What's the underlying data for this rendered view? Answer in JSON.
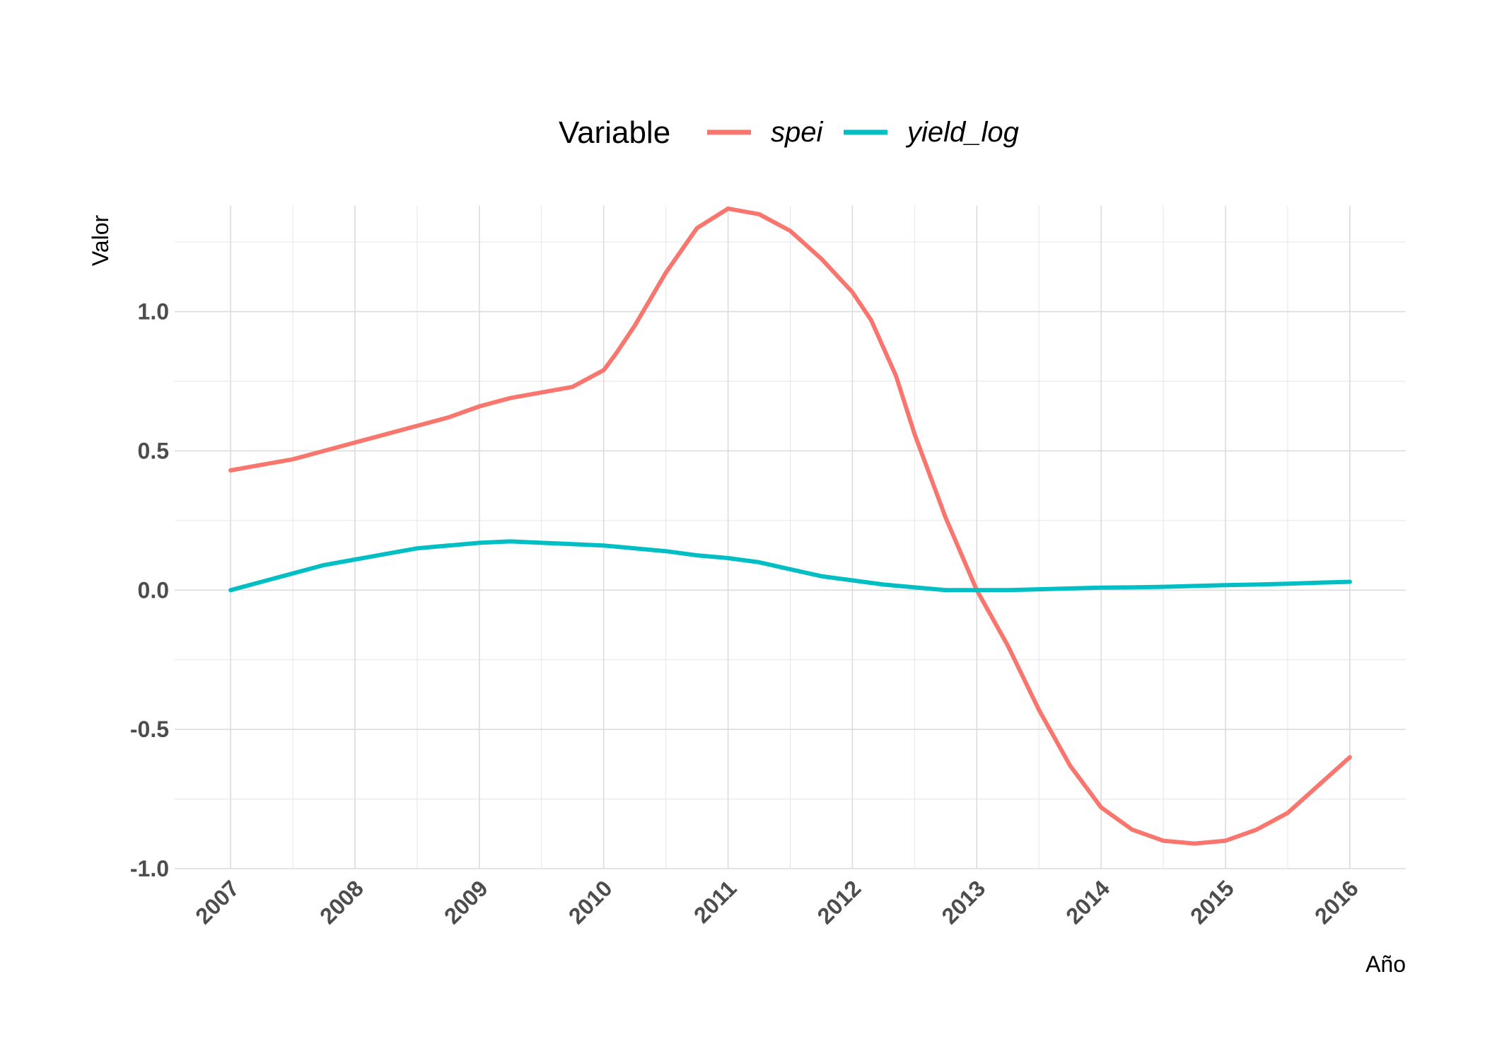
{
  "chart_data": {
    "type": "line",
    "title": "",
    "xlabel": "Año",
    "ylabel": "Valor",
    "xlim": [
      2006.55,
      2016.45
    ],
    "ylim": [
      -1.0,
      1.38
    ],
    "grid": true,
    "legend": {
      "title": "Variable",
      "position": "top",
      "entries": [
        {
          "name": "spei",
          "color": "#F8766D"
        },
        {
          "name": "yield_log",
          "color": "#00BFC4"
        }
      ]
    },
    "x_ticks": [
      2007,
      2008,
      2009,
      2010,
      2011,
      2012,
      2013,
      2014,
      2015,
      2016
    ],
    "x_tick_labels": [
      "2007",
      "2008",
      "2009",
      "2010",
      "2011",
      "2012",
      "2013",
      "2014",
      "2015",
      "2016"
    ],
    "y_ticks": [
      -1.0,
      -0.5,
      0.0,
      0.5,
      1.0
    ],
    "y_tick_labels": [
      "-1.0",
      "-0.5",
      "0.0",
      "0.5",
      "1.0"
    ],
    "series": [
      {
        "name": "spei",
        "color": "#F8766D",
        "x": [
          2007.0,
          2007.25,
          2007.5,
          2007.75,
          2008.0,
          2008.25,
          2008.5,
          2008.75,
          2009.0,
          2009.25,
          2009.5,
          2009.75,
          2010.0,
          2010.1,
          2010.25,
          2010.5,
          2010.75,
          2011.0,
          2011.25,
          2011.5,
          2011.75,
          2012.0,
          2012.15,
          2012.35,
          2012.5,
          2012.75,
          2013.0,
          2013.25,
          2013.5,
          2013.75,
          2014.0,
          2014.25,
          2014.5,
          2014.75,
          2015.0,
          2015.25,
          2015.5,
          2015.75,
          2016.0
        ],
        "y": [
          0.43,
          0.45,
          0.47,
          0.5,
          0.53,
          0.56,
          0.59,
          0.62,
          0.66,
          0.69,
          0.71,
          0.73,
          0.79,
          0.85,
          0.95,
          1.14,
          1.3,
          1.37,
          1.35,
          1.29,
          1.19,
          1.07,
          0.97,
          0.77,
          0.56,
          0.26,
          0.0,
          -0.2,
          -0.43,
          -0.63,
          -0.78,
          -0.86,
          -0.9,
          -0.91,
          -0.9,
          -0.86,
          -0.8,
          -0.7,
          -0.6
        ]
      },
      {
        "name": "yield_log",
        "color": "#00BFC4",
        "x": [
          2007.0,
          2007.25,
          2007.5,
          2007.75,
          2008.0,
          2008.25,
          2008.5,
          2008.75,
          2009.0,
          2009.25,
          2009.5,
          2009.75,
          2010.0,
          2010.25,
          2010.5,
          2010.75,
          2011.0,
          2011.25,
          2011.5,
          2011.75,
          2012.0,
          2012.25,
          2012.5,
          2012.75,
          2013.0,
          2013.25,
          2013.5,
          2013.75,
          2014.0,
          2014.25,
          2014.5,
          2014.75,
          2015.0,
          2015.25,
          2015.5,
          2015.75,
          2016.0
        ],
        "y": [
          0.0,
          0.03,
          0.06,
          0.09,
          0.11,
          0.13,
          0.15,
          0.16,
          0.17,
          0.175,
          0.17,
          0.165,
          0.16,
          0.15,
          0.14,
          0.125,
          0.115,
          0.1,
          0.075,
          0.05,
          0.035,
          0.02,
          0.01,
          0.0,
          0.0,
          0.0,
          0.003,
          0.006,
          0.009,
          0.01,
          0.012,
          0.015,
          0.018,
          0.02,
          0.023,
          0.027,
          0.03
        ]
      }
    ]
  }
}
